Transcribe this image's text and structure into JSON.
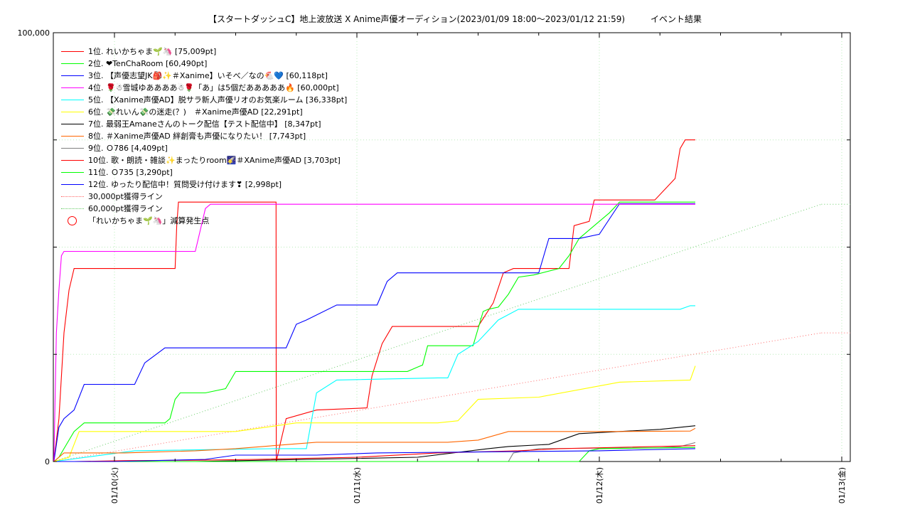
{
  "chart_data": {
    "type": "line",
    "title": "【スタートダッシュC】地上波放送 X Anime声優オーディション(2023/01/09 18:00〜2023/01/12 21:59)　　　イベント結果",
    "xlabel": "",
    "ylabel": "",
    "x_range": [
      "2023/01/09 18:00",
      "2023/01/12 21:59"
    ],
    "ylim": [
      0,
      100000
    ],
    "y_tick_labels": [
      {
        "value": 0,
        "label": "0"
      },
      {
        "value": 100000,
        "label": "100,000"
      }
    ],
    "x_tick_labels": [
      {
        "value": "01/10 00:00",
        "label": "01/10(火)"
      },
      {
        "value": "01/11 00:00",
        "label": "01/11(水)"
      },
      {
        "value": "01/12 00:00",
        "label": "01/12(木)"
      },
      {
        "value": "01/13 00:00",
        "label": "01/13(金)"
      }
    ],
    "grid": true,
    "legend_position": "top-left",
    "series": [
      {
        "name": "1位. れいかちゃま🌱🦄 [75,009pt]",
        "color": "#ff0000",
        "points": [
          [
            "01/09 18:00",
            0
          ],
          [
            "01/09 18:30",
            10000
          ],
          [
            "01/09 19:00",
            30000
          ],
          [
            "01/09 19:30",
            40000
          ],
          [
            "01/09 20:00",
            45000
          ],
          [
            "01/09 23:00",
            45000
          ],
          [
            "01/10 06:00",
            45000
          ],
          [
            "01/10 06:10",
            55000
          ],
          [
            "01/10 06:20",
            60500
          ],
          [
            "01/10 16:00",
            60500
          ],
          [
            "01/10 16:01",
            0
          ],
          [
            "01/10 16:30",
            5000
          ],
          [
            "01/10 17:00",
            10000
          ],
          [
            "01/10 20:00",
            12000
          ],
          [
            "01/11 01:00",
            12500
          ],
          [
            "01/11 01:30",
            20000
          ],
          [
            "01/11 02:30",
            27500
          ],
          [
            "01/11 03:30",
            31500
          ],
          [
            "01/11 08:00",
            31500
          ],
          [
            "01/11 12:00",
            31500
          ],
          [
            "01/11 13:30",
            37000
          ],
          [
            "01/11 14:30",
            44000
          ],
          [
            "01/11 15:30",
            45000
          ],
          [
            "01/11 21:00",
            45000
          ],
          [
            "01/11 21:30",
            55000
          ],
          [
            "01/11 23:00",
            56000
          ],
          [
            "01/11 23:30",
            61000
          ],
          [
            "01/12 05:30",
            61000
          ],
          [
            "01/12 07:30",
            66000
          ],
          [
            "01/12 08:00",
            73000
          ],
          [
            "01/12 08:30",
            75009
          ],
          [
            "01/12 09:30",
            75009
          ]
        ]
      },
      {
        "name": "2位. ❤TenChaRoom [60,490pt]",
        "color": "#00ff00",
        "points": [
          [
            "01/09 18:00",
            0
          ],
          [
            "01/09 18:30",
            1000
          ],
          [
            "01/09 19:00",
            3000
          ],
          [
            "01/09 20:00",
            7000
          ],
          [
            "01/09 21:00",
            9000
          ],
          [
            "01/09 23:00",
            9000
          ],
          [
            "01/10 02:00",
            9000
          ],
          [
            "01/10 05:00",
            9000
          ],
          [
            "01/10 05:30",
            10000
          ],
          [
            "01/10 06:00",
            14500
          ],
          [
            "01/10 06:30",
            16000
          ],
          [
            "01/10 09:00",
            16000
          ],
          [
            "01/10 11:00",
            17000
          ],
          [
            "01/10 12:00",
            21000
          ],
          [
            "01/10 13:00",
            21000
          ],
          [
            "01/10 14:00",
            21000
          ],
          [
            "01/10 22:00",
            21000
          ],
          [
            "01/11 00:00",
            21000
          ],
          [
            "01/11 05:00",
            21000
          ],
          [
            "01/11 06:00",
            22000
          ],
          [
            "01/11 06:30",
            22500
          ],
          [
            "01/11 07:00",
            27000
          ],
          [
            "01/11 10:00",
            27000
          ],
          [
            "01/11 11:30",
            27000
          ],
          [
            "01/11 12:30",
            35000
          ],
          [
            "01/11 13:00",
            35500
          ],
          [
            "01/11 14:00",
            36000
          ],
          [
            "01/11 15:00",
            39000
          ],
          [
            "01/11 16:00",
            43000
          ],
          [
            "01/11 17:30",
            43500
          ],
          [
            "01/11 20:00",
            45000
          ],
          [
            "01/11 21:00",
            48000
          ],
          [
            "01/11 22:00",
            52000
          ],
          [
            "01/11 23:30",
            55000
          ],
          [
            "01/12 01:00",
            58000
          ],
          [
            "01/12 02:00",
            60490
          ],
          [
            "01/12 09:30",
            60490
          ]
        ]
      },
      {
        "name": "3位. 【声優志望JK🎒✨＃Xanime】いそべ／なの🐔💙 [60,118pt]",
        "color": "#0000ff",
        "points": [
          [
            "01/09 18:00",
            0
          ],
          [
            "01/09 18:30",
            8000
          ],
          [
            "01/09 19:00",
            10000
          ],
          [
            "01/09 20:00",
            12000
          ],
          [
            "01/09 21:00",
            18000
          ],
          [
            "01/09 23:00",
            18000
          ],
          [
            "01/10 02:00",
            18000
          ],
          [
            "01/10 03:00",
            23000
          ],
          [
            "01/10 05:00",
            26500
          ],
          [
            "01/10 13:00",
            26500
          ],
          [
            "01/10 17:00",
            26500
          ],
          [
            "01/10 18:00",
            32000
          ],
          [
            "01/10 19:00",
            33000
          ],
          [
            "01/10 22:00",
            36500
          ],
          [
            "01/11 02:00",
            36500
          ],
          [
            "01/11 03:00",
            42000
          ],
          [
            "01/11 04:00",
            44000
          ],
          [
            "01/11 06:00",
            44000
          ],
          [
            "01/11 08:00",
            44000
          ],
          [
            "01/11 14:00",
            44000
          ],
          [
            "01/11 18:00",
            44000
          ],
          [
            "01/11 19:00",
            52000
          ],
          [
            "01/11 22:00",
            52000
          ],
          [
            "01/12 00:00",
            53000
          ],
          [
            "01/12 02:00",
            60118
          ],
          [
            "01/12 09:30",
            60118
          ]
        ]
      },
      {
        "name": "4位. 🌹☃雪城ゆああああ☃🌹「あ」は5個だあああああ🔥 [60,000pt]",
        "color": "#ff00ff",
        "points": [
          [
            "01/09 18:00",
            0
          ],
          [
            "01/09 18:15",
            30000
          ],
          [
            "01/09 18:30",
            40000
          ],
          [
            "01/09 18:45",
            48000
          ],
          [
            "01/09 19:00",
            49000
          ],
          [
            "01/10 06:00",
            49000
          ],
          [
            "01/10 08:00",
            49000
          ],
          [
            "01/10 09:00",
            59000
          ],
          [
            "01/10 09:30",
            60000
          ],
          [
            "01/12 09:30",
            60000
          ]
        ]
      },
      {
        "name": "5位. 【Xanime声優AD】脱サラ新人声優リオのお気楽ルーム [36,338pt]",
        "color": "#00ffff",
        "points": [
          [
            "01/09 18:00",
            0
          ],
          [
            "01/10 02:00",
            2500
          ],
          [
            "01/10 16:00",
            3000
          ],
          [
            "01/10 19:00",
            3000
          ],
          [
            "01/10 20:00",
            16000
          ],
          [
            "01/10 22:00",
            19000
          ],
          [
            "01/11 08:00",
            19500
          ],
          [
            "01/11 09:00",
            19500
          ],
          [
            "01/11 10:00",
            25000
          ],
          [
            "01/11 12:00",
            28000
          ],
          [
            "01/11 14:00",
            33000
          ],
          [
            "01/11 16:00",
            35500
          ],
          [
            "01/12 08:00",
            35500
          ],
          [
            "01/12 09:00",
            36338
          ],
          [
            "01/12 09:30",
            36338
          ]
        ]
      },
      {
        "name": "6位. 💸れいん💸の迷走(？)　＃Xanime声優AD [22,291pt]",
        "color": "#ffff00",
        "points": [
          [
            "01/09 18:00",
            0
          ],
          [
            "01/09 19:30",
            1000
          ],
          [
            "01/09 20:30",
            7000
          ],
          [
            "01/10 06:00",
            7000
          ],
          [
            "01/10 08:00",
            7000
          ],
          [
            "01/10 12:00",
            7000
          ],
          [
            "01/10 18:00",
            9000
          ],
          [
            "01/11 06:00",
            9000
          ],
          [
            "01/11 08:00",
            9000
          ],
          [
            "01/11 10:00",
            9500
          ],
          [
            "01/11 12:00",
            14500
          ],
          [
            "01/11 18:00",
            15000
          ],
          [
            "01/12 02:00",
            18500
          ],
          [
            "01/12 09:00",
            19000
          ],
          [
            "01/12 09:30",
            22291
          ]
        ]
      },
      {
        "name": "7位. 最弱王Amaneさんのトーク配信【テスト配信中】 [8,347pt]",
        "color": "#000000",
        "points": [
          [
            "01/09 18:00",
            0
          ],
          [
            "01/10 08:00",
            0
          ],
          [
            "01/11 06:00",
            1000
          ],
          [
            "01/11 13:00",
            3000
          ],
          [
            "01/11 15:00",
            3500
          ],
          [
            "01/11 19:00",
            4000
          ],
          [
            "01/11 22:00",
            6500
          ],
          [
            "01/12 02:00",
            7000
          ],
          [
            "01/12 06:00",
            7500
          ],
          [
            "01/12 09:30",
            8347
          ]
        ]
      },
      {
        "name": "8位. ＃Xanime声優AD 絆創膏も声優になりたい！ [7,743pt]",
        "color": "#ff6600",
        "points": [
          [
            "01/09 18:00",
            0
          ],
          [
            "01/09 19:00",
            2000
          ],
          [
            "01/09 23:00",
            2000
          ],
          [
            "01/10 00:00",
            2000
          ],
          [
            "01/10 01:00",
            2000
          ],
          [
            "01/10 08:00",
            2500
          ],
          [
            "01/10 12:00",
            3000
          ],
          [
            "01/10 20:00",
            4500
          ],
          [
            "01/11 09:00",
            4500
          ],
          [
            "01/11 12:00",
            5000
          ],
          [
            "01/11 15:00",
            7000
          ],
          [
            "01/11 20:00",
            7000
          ],
          [
            "01/12 02:00",
            7000
          ],
          [
            "01/12 09:00",
            7100
          ],
          [
            "01/12 09:30",
            7743
          ]
        ]
      },
      {
        "name": "9位. Ｏ786 [4,409pt]",
        "color": "#808080",
        "points": [
          [
            "01/09 18:00",
            0
          ],
          [
            "01/11 15:00",
            0
          ],
          [
            "01/11 15:30",
            2000
          ],
          [
            "01/11 18:00",
            3000
          ],
          [
            "01/12 06:00",
            3200
          ],
          [
            "01/12 08:00",
            3500
          ],
          [
            "01/12 09:30",
            4409
          ]
        ]
      },
      {
        "name": "10位. 歌・朗読・雑談✨まったりroom🌠＃XAnime声優AD [3,703pt]",
        "color": "#ff0000",
        "points": [
          [
            "01/09 18:00",
            0
          ],
          [
            "01/09 20:00",
            0
          ],
          [
            "01/10 01:00",
            200
          ],
          [
            "01/10 08:00",
            300
          ],
          [
            "01/10 14:00",
            500
          ],
          [
            "01/11 00:00",
            1000
          ],
          [
            "01/11 08:00",
            2000
          ],
          [
            "01/11 16:00",
            2500
          ],
          [
            "01/11 20:00",
            3000
          ],
          [
            "01/12 09:30",
            3703
          ]
        ]
      },
      {
        "name": "11位. Ｏ735 [3,290pt]",
        "color": "#00ff00",
        "points": [
          [
            "01/09 18:00",
            0
          ],
          [
            "01/11 22:00",
            0
          ],
          [
            "01/11 23:00",
            2500
          ],
          [
            "01/12 00:00",
            3000
          ],
          [
            "01/12 09:30",
            3290
          ]
        ]
      },
      {
        "name": "12位. ゆったり配信中！質問受け付けます❣ [2,998pt]",
        "color": "#0000ff",
        "points": [
          [
            "01/09 18:00",
            0
          ],
          [
            "01/10 00:00",
            0
          ],
          [
            "01/10 09:00",
            500
          ],
          [
            "01/10 12:00",
            1500
          ],
          [
            "01/10 20:00",
            1500
          ],
          [
            "01/11 02:00",
            2000
          ],
          [
            "01/12 00:00",
            2500
          ],
          [
            "01/12 09:30",
            2998
          ]
        ]
      }
    ],
    "reference_lines": [
      {
        "name": "30,000pt獲得ライン",
        "color": "#ff6666",
        "points": [
          [
            "01/09 18:00",
            0
          ],
          [
            "01/12 21:59",
            30000
          ]
        ],
        "target": 30000
      },
      {
        "name": "60,000pt獲得ライン",
        "color": "#66cc66",
        "points": [
          [
            "01/09 18:00",
            0
          ],
          [
            "01/12 21:59",
            60000
          ]
        ],
        "target": 60000
      }
    ],
    "markers": {
      "name": "「れいかちゃま🌱🦄」減算発生点",
      "color": "#ff0000",
      "shape": "circle"
    }
  }
}
